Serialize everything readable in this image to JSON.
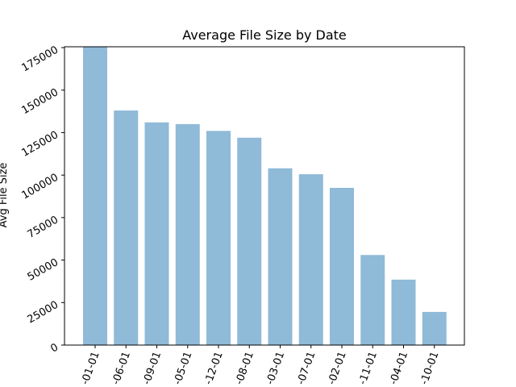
{
  "chart_data": {
    "type": "bar",
    "title": "Average File Size by Date",
    "xlabel": "",
    "ylabel": "Avg File Size",
    "categories": [
      "-01-01",
      "-06-01",
      "-09-01",
      "-05-01",
      "-12-01",
      "-08-01",
      "-03-01",
      "-07-01",
      "-02-01",
      "-11-01",
      "-04-01",
      "-10-01"
    ],
    "values": [
      175500,
      138000,
      131000,
      130000,
      126000,
      122000,
      104000,
      100500,
      92500,
      53000,
      38500,
      19500
    ],
    "yticks": [
      0,
      25000,
      50000,
      75000,
      100000,
      125000,
      150000,
      175000
    ],
    "ytick_labels": [
      "0",
      "25000",
      "50000",
      "75000",
      "100000",
      "125000",
      "150000",
      "175000"
    ],
    "ylim": [
      0,
      175500
    ],
    "bar_color": "#8fbad8",
    "grid": false,
    "legend": "none"
  }
}
